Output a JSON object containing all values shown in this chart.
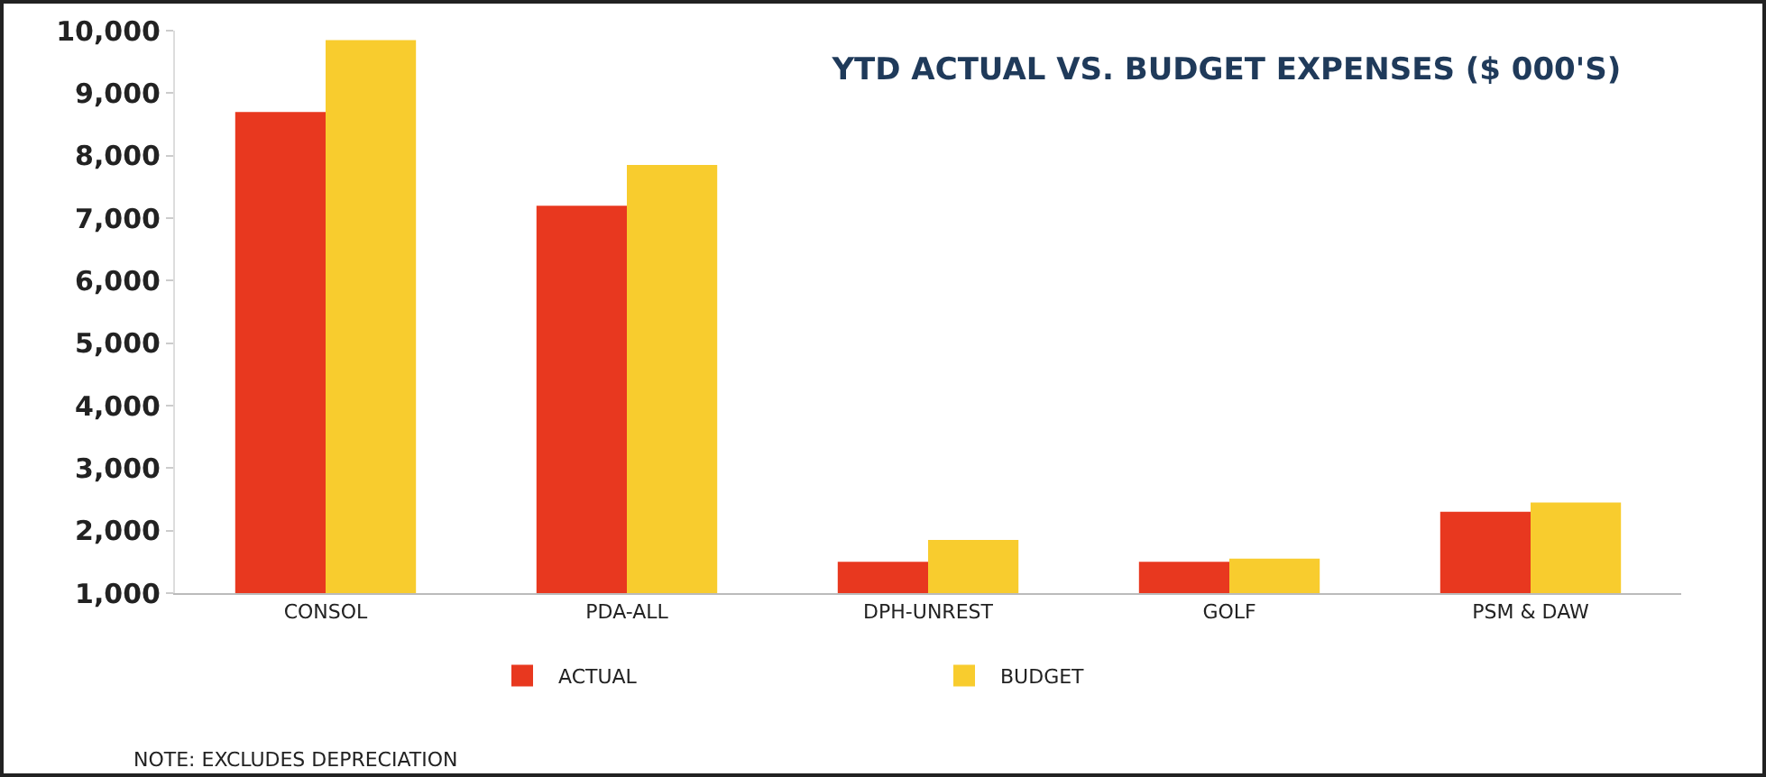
{
  "chart_data": {
    "type": "bar",
    "title": "YTD ACTUAL VS. BUDGET EXPENSES ($ 000'S)",
    "categories": [
      "CONSOL",
      "PDA-ALL",
      "DPH-UNREST",
      "GOLF",
      "PSM & DAW"
    ],
    "series": [
      {
        "name": "ACTUAL",
        "color": "#e8381f",
        "values": [
          8700,
          7200,
          1500,
          1500,
          2300
        ]
      },
      {
        "name": "BUDGET",
        "color": "#f8cc2e",
        "values": [
          9850,
          7850,
          1850,
          1550,
          2450
        ]
      }
    ],
    "ylim": [
      1000,
      10000
    ],
    "yticks": [
      {
        "value": 1000,
        "label": "1,000"
      },
      {
        "value": 2000,
        "label": "2,000"
      },
      {
        "value": 3000,
        "label": "3,000"
      },
      {
        "value": 4000,
        "label": "4,000"
      },
      {
        "value": 5000,
        "label": "5,000"
      },
      {
        "value": 6000,
        "label": "6,000"
      },
      {
        "value": 7000,
        "label": "7,000"
      },
      {
        "value": 8000,
        "label": "8,000"
      },
      {
        "value": 9000,
        "label": "9,000"
      },
      {
        "value": 10000,
        "label": "10,000"
      }
    ],
    "grid": false,
    "legend": "bottom",
    "annotations": [
      "NOTE: EXCLUDES DEPRECIATION"
    ]
  }
}
